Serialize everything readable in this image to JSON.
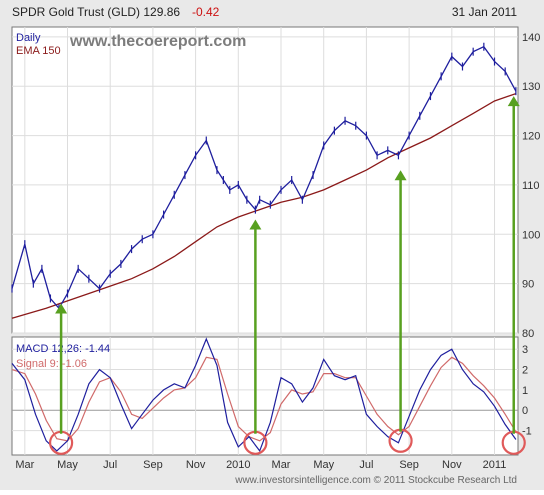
{
  "header": {
    "title": "SPDR Gold Trust (GLD) 129.86",
    "change": "-0.42",
    "date": "31 Jan 2011"
  },
  "watermark": "www.thecoereport.com",
  "footer": "www.investorsintelligence.com © 2011 Stockcube Research Ltd",
  "colors": {
    "price": "#1f1f9e",
    "ema": "#8b1a1a",
    "macd": "#1f1f9e",
    "signal": "#d06a6a",
    "arrow": "#58a020",
    "circle": "#e05a5a",
    "change": "#cc1111",
    "panel_bg": "#ffffff",
    "outer_bg": "#e9e9e9"
  },
  "chart_data": [
    {
      "type": "line",
      "title": "SPDR Gold Trust (GLD) 129.86 -0.42",
      "period_label": "Daily",
      "ylim": [
        80,
        142
      ],
      "yticks": [
        80,
        90,
        100,
        110,
        120,
        130,
        140
      ],
      "x_labels": [
        "Mar",
        "May",
        "Jul",
        "Sep",
        "Nov",
        "2010",
        "Mar",
        "May",
        "Jul",
        "Sep",
        "Nov",
        "2011"
      ],
      "x_label_months": [
        0,
        2,
        4,
        6,
        8,
        10,
        12,
        14,
        16,
        18,
        20,
        22
      ],
      "x_range_months": [
        -0.6,
        23.1
      ],
      "series": [
        {
          "name": "price",
          "x": [
            -0.6,
            0.0,
            0.4,
            0.8,
            1.2,
            1.6,
            2.0,
            2.5,
            3.0,
            3.5,
            4.0,
            4.5,
            5.0,
            5.5,
            6.0,
            6.5,
            7.0,
            7.5,
            8.0,
            8.5,
            9.0,
            9.3,
            9.6,
            10.0,
            10.4,
            10.8,
            11.0,
            11.5,
            12.0,
            12.5,
            13.0,
            13.5,
            14.0,
            14.5,
            15.0,
            15.5,
            16.0,
            16.5,
            17.0,
            17.5,
            18.0,
            18.5,
            19.0,
            19.5,
            20.0,
            20.5,
            21.0,
            21.5,
            22.0,
            22.5,
            23.0
          ],
          "values": [
            89,
            98,
            90,
            93,
            87,
            85,
            88,
            93,
            91,
            89,
            92,
            94,
            97,
            99,
            100,
            104,
            108,
            112,
            116,
            119,
            113,
            111,
            109,
            110,
            107,
            105,
            107,
            106,
            109,
            111,
            107,
            112,
            118,
            121,
            123,
            122,
            120,
            116,
            117,
            116,
            120,
            124,
            128,
            132,
            136,
            134,
            137,
            138,
            135,
            133,
            129
          ]
        },
        {
          "name": "EMA 150",
          "x": [
            -0.6,
            1.0,
            2.0,
            3.0,
            4.0,
            5.0,
            6.0,
            7.0,
            8.0,
            9.0,
            10.0,
            11.0,
            12.0,
            13.0,
            14.0,
            15.0,
            16.0,
            17.0,
            18.0,
            19.0,
            20.0,
            21.0,
            22.0,
            23.0
          ],
          "values": [
            83,
            85,
            86.5,
            88,
            89.5,
            91,
            93,
            95.5,
            98.5,
            101.5,
            103.5,
            105,
            106.5,
            107.5,
            109,
            111,
            113,
            115.5,
            117.5,
            119.5,
            122,
            124.5,
            127,
            128.5
          ]
        }
      ]
    },
    {
      "type": "line",
      "title": "MACD 12,26: -1.44",
      "ylim": [
        -2.2,
        3.6
      ],
      "yticks": [
        -1,
        0,
        1,
        2,
        3
      ],
      "series": [
        {
          "name": "MACD 12,26: -1.44",
          "x": [
            -0.6,
            0.0,
            0.5,
            1.0,
            1.5,
            2.0,
            2.5,
            3.0,
            3.5,
            4.0,
            4.5,
            5.0,
            5.5,
            6.0,
            6.5,
            7.0,
            7.5,
            8.0,
            8.5,
            9.0,
            9.5,
            10.0,
            10.5,
            11.0,
            11.5,
            12.0,
            12.5,
            13.0,
            13.5,
            14.0,
            14.5,
            15.0,
            15.5,
            16.0,
            16.5,
            17.0,
            17.5,
            18.0,
            18.5,
            19.0,
            19.5,
            20.0,
            20.5,
            21.0,
            21.5,
            22.0,
            22.5,
            23.0
          ],
          "values": [
            2.3,
            1.5,
            -0.2,
            -1.5,
            -2.0,
            -1.5,
            -0.2,
            1.3,
            2.0,
            1.6,
            0.3,
            -0.9,
            -0.2,
            0.5,
            1.0,
            1.3,
            1.1,
            2.2,
            3.5,
            2.2,
            -0.6,
            -1.8,
            -1.3,
            -2.0,
            -0.6,
            1.6,
            1.3,
            0.4,
            1.1,
            2.5,
            1.7,
            1.5,
            1.7,
            -0.2,
            -0.8,
            -1.3,
            -1.6,
            -0.3,
            1.0,
            2.0,
            2.7,
            3.0,
            2.0,
            1.3,
            0.9,
            0.2,
            -0.7,
            -1.44
          ]
        },
        {
          "name": "Signal 9: -1.06",
          "x": [
            -0.6,
            0.0,
            0.5,
            1.0,
            1.5,
            2.0,
            2.5,
            3.0,
            3.5,
            4.0,
            4.5,
            5.0,
            5.5,
            6.0,
            6.5,
            7.0,
            7.5,
            8.0,
            8.5,
            9.0,
            9.5,
            10.0,
            10.5,
            11.0,
            11.5,
            12.0,
            12.5,
            13.0,
            13.5,
            14.0,
            14.5,
            15.0,
            15.5,
            16.0,
            16.5,
            17.0,
            17.5,
            18.0,
            18.5,
            19.0,
            19.5,
            20.0,
            20.5,
            21.0,
            21.5,
            22.0,
            22.5,
            23.0
          ],
          "values": [
            2.0,
            1.8,
            0.8,
            -0.5,
            -1.4,
            -1.5,
            -0.9,
            0.4,
            1.4,
            1.6,
            0.9,
            -0.2,
            -0.4,
            0.1,
            0.6,
            1.0,
            1.1,
            1.6,
            2.6,
            2.5,
            0.8,
            -0.8,
            -1.3,
            -1.5,
            -1.1,
            0.3,
            1.0,
            0.8,
            0.9,
            1.8,
            1.8,
            1.6,
            1.6,
            0.7,
            -0.2,
            -0.8,
            -1.2,
            -0.8,
            0.2,
            1.2,
            2.1,
            2.6,
            2.3,
            1.7,
            1.2,
            0.6,
            -0.2,
            -1.06
          ]
        }
      ]
    }
  ],
  "annotations": {
    "arrows": [
      {
        "x": 1.7,
        "price_target": 87,
        "macd_circle": -1.6
      },
      {
        "x": 10.8,
        "price_target": 104,
        "macd_circle": -1.6
      },
      {
        "x": 17.6,
        "price_target": 114,
        "macd_circle": -1.5
      },
      {
        "x": 22.9,
        "price_target": 129,
        "macd_circle": -1.6
      }
    ]
  }
}
